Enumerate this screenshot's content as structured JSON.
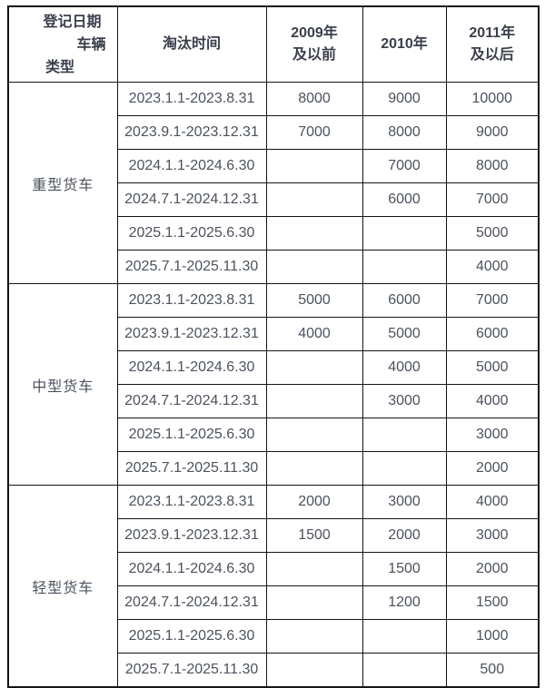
{
  "colors": {
    "background": "#ffffff",
    "border": "#141414",
    "header_text": "#3a3f4b",
    "body_text": "#4c525e"
  },
  "chart_data": {
    "type": "table",
    "header": {
      "corner_line1": "登记日期",
      "corner_line2": "车辆",
      "corner_line3": "类型",
      "col_period": "淘汰时间",
      "col_2009_line1": "2009年",
      "col_2009_line2": "及以前",
      "col_2010": "2010年",
      "col_2011_line1": "2011年",
      "col_2011_line2": "及以后"
    },
    "col_headers_full": [
      "淘汰时间",
      "2009年及以前",
      "2010年",
      "2011年及以后"
    ],
    "corner_axis_labels": {
      "columns_axis": "登记日期",
      "rows_axis": "车辆类型"
    },
    "groups": [
      {
        "vehicle_type": "重型货车",
        "rows": [
          {
            "period": "2023.1.1-2023.8.31",
            "values": [
              "8000",
              "9000",
              "10000"
            ]
          },
          {
            "period": "2023.9.1-2023.12.31",
            "values": [
              "7000",
              "8000",
              "9000"
            ]
          },
          {
            "period": "2024.1.1-2024.6.30",
            "values": [
              "",
              "7000",
              "8000"
            ]
          },
          {
            "period": "2024.7.1-2024.12.31",
            "values": [
              "",
              "6000",
              "7000"
            ]
          },
          {
            "period": "2025.1.1-2025.6.30",
            "values": [
              "",
              "",
              "5000"
            ]
          },
          {
            "period": "2025.7.1-2025.11.30",
            "values": [
              "",
              "",
              "4000"
            ]
          }
        ]
      },
      {
        "vehicle_type": "中型货车",
        "rows": [
          {
            "period": "2023.1.1-2023.8.31",
            "values": [
              "5000",
              "6000",
              "7000"
            ]
          },
          {
            "period": "2023.9.1-2023.12.31",
            "values": [
              "4000",
              "5000",
              "6000"
            ]
          },
          {
            "period": "2024.1.1-2024.6.30",
            "values": [
              "",
              "4000",
              "5000"
            ]
          },
          {
            "period": "2024.7.1-2024.12.31",
            "values": [
              "",
              "3000",
              "4000"
            ]
          },
          {
            "period": "2025.1.1-2025.6.30",
            "values": [
              "",
              "",
              "3000"
            ]
          },
          {
            "period": "2025.7.1-2025.11.30",
            "values": [
              "",
              "",
              "2000"
            ]
          }
        ]
      },
      {
        "vehicle_type": "轻型货车",
        "rows": [
          {
            "period": "2023.1.1-2023.8.31",
            "values": [
              "2000",
              "3000",
              "4000"
            ]
          },
          {
            "period": "2023.9.1-2023.12.31",
            "values": [
              "1500",
              "2000",
              "3000"
            ]
          },
          {
            "period": "2024.1.1-2024.6.30",
            "values": [
              "",
              "1500",
              "2000"
            ]
          },
          {
            "period": "2024.7.1-2024.12.31",
            "values": [
              "",
              "1200",
              "1500"
            ]
          },
          {
            "period": "2025.1.1-2025.6.30",
            "values": [
              "",
              "",
              "1000"
            ]
          },
          {
            "period": "2025.7.1-2025.11.30",
            "values": [
              "",
              "",
              "500"
            ]
          }
        ]
      }
    ]
  }
}
